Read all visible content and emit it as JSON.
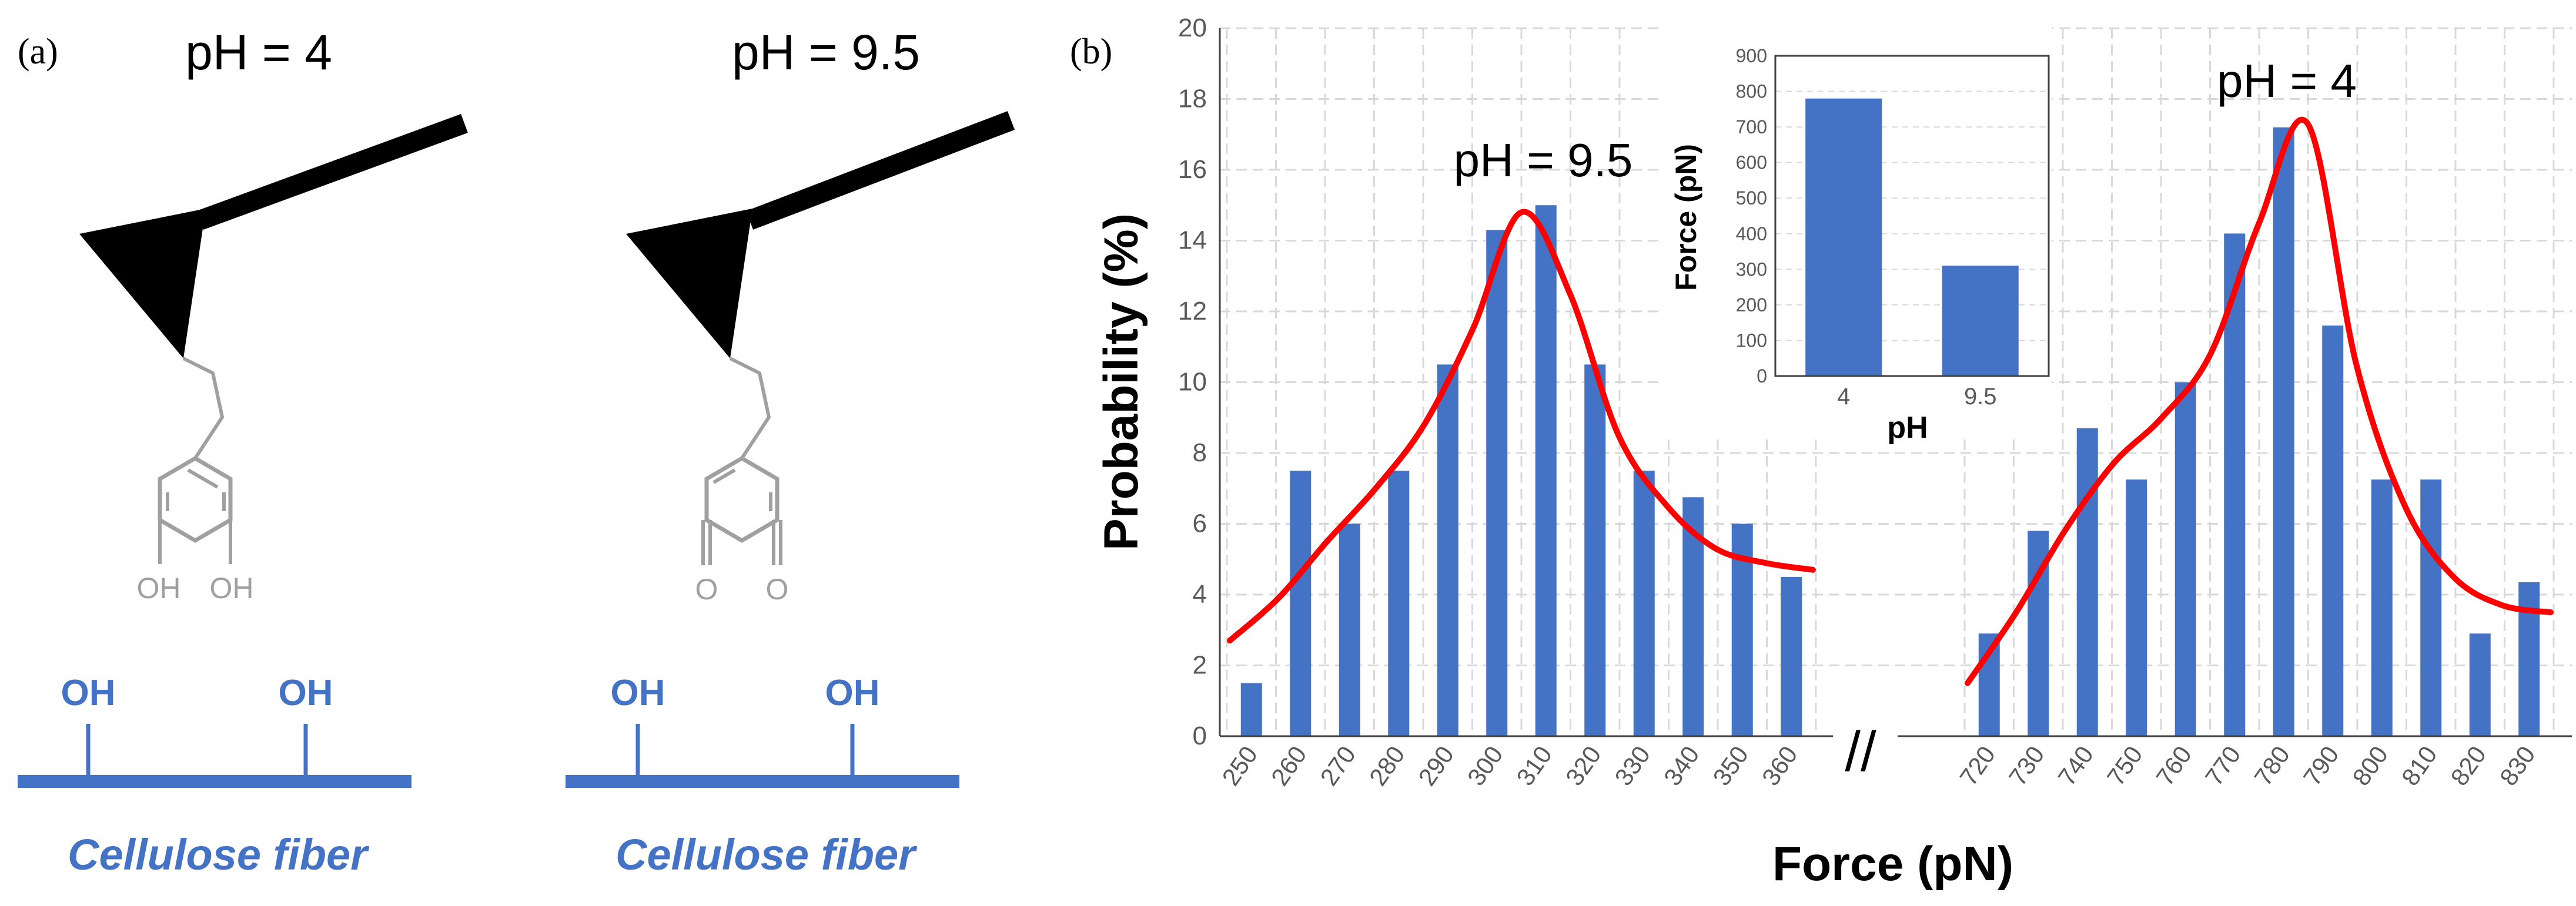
{
  "panel_a": {
    "label": "(a)",
    "left": {
      "title": "pH = 4",
      "ring_substituents": [
        "OH",
        "OH"
      ],
      "fiber_groups": [
        "OH",
        "OH"
      ],
      "fiber_label": "Cellulose fiber"
    },
    "right": {
      "title": "pH = 9.5",
      "ring_substituents": [
        "O",
        "O"
      ],
      "fiber_groups": [
        "OH",
        "OH"
      ],
      "fiber_label": "Cellulose fiber"
    }
  },
  "panel_b": {
    "label": "(b)",
    "axis_break": "//"
  },
  "colors": {
    "bar": "#4472C4",
    "fit": "#FF0000",
    "fiber": "#4472C4",
    "molecule": "#A0A0A0",
    "grid": "#D9D9D9"
  },
  "chart_data": [
    {
      "type": "bar",
      "title": "",
      "xlabel": "Force (pN)",
      "ylabel": "Probability (%)",
      "ylim": [
        0,
        20
      ],
      "yticks": [
        0,
        2,
        4,
        6,
        8,
        10,
        12,
        14,
        16,
        18,
        20
      ],
      "grid": true,
      "x_broken": true,
      "segments": [
        {
          "annotation": "pH = 9.5",
          "categories": [
            "250",
            "260",
            "270",
            "280",
            "290",
            "300",
            "310",
            "320",
            "330",
            "340",
            "350",
            "360"
          ],
          "values": [
            1.5,
            7.5,
            6.0,
            7.5,
            10.5,
            14.3,
            15.0,
            10.5,
            7.5,
            6.75,
            6.0,
            4.5
          ],
          "fit": [
            2.7,
            3.9,
            5.5,
            7.0,
            8.8,
            11.5,
            14.8,
            12.5,
            8.5,
            6.5,
            5.3,
            4.9,
            4.7
          ]
        },
        {
          "annotation": "pH = 4",
          "categories": [
            "720",
            "730",
            "740",
            "750",
            "760",
            "770",
            "780",
            "790",
            "800",
            "810",
            "820",
            "830"
          ],
          "values": [
            2.9,
            5.8,
            8.7,
            7.25,
            10.0,
            14.2,
            17.2,
            11.6,
            7.25,
            7.25,
            2.9,
            4.35
          ],
          "fit": [
            1.5,
            3.5,
            5.8,
            7.7,
            9.0,
            10.8,
            14.5,
            17.3,
            10.5,
            6.5,
            4.5,
            3.7,
            3.5
          ]
        }
      ]
    },
    {
      "type": "bar",
      "title": "",
      "inset": true,
      "xlabel": "pH",
      "ylabel": "Force (pN)",
      "ylim": [
        0,
        900
      ],
      "yticks": [
        0,
        100,
        200,
        300,
        400,
        500,
        600,
        700,
        800,
        900
      ],
      "categories": [
        "4",
        "9.5"
      ],
      "values": [
        780,
        310
      ]
    }
  ]
}
